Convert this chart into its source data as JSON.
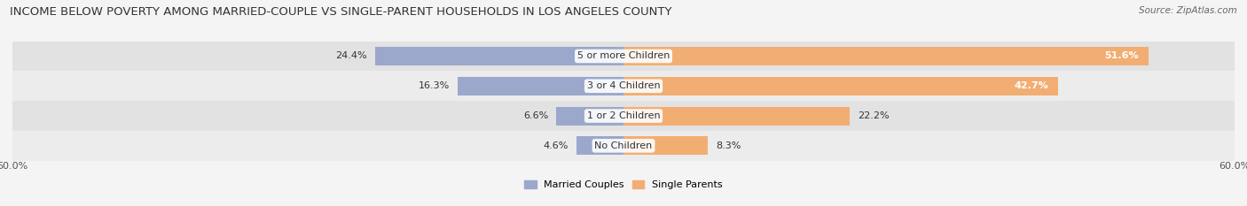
{
  "title": "INCOME BELOW POVERTY AMONG MARRIED-COUPLE VS SINGLE-PARENT HOUSEHOLDS IN LOS ANGELES COUNTY",
  "source": "Source: ZipAtlas.com",
  "categories": [
    "No Children",
    "1 or 2 Children",
    "3 or 4 Children",
    "5 or more Children"
  ],
  "married_values": [
    4.6,
    6.6,
    16.3,
    24.4
  ],
  "single_values": [
    8.3,
    22.2,
    42.7,
    51.6
  ],
  "max_value": 60.0,
  "married_color": "#9ba8cc",
  "single_color": "#f2ae72",
  "row_bg_color_odd": "#ececec",
  "row_bg_color_even": "#e2e2e2",
  "fig_bg_color": "#f4f4f4",
  "married_label": "Married Couples",
  "single_label": "Single Parents",
  "axis_label": "60.0%",
  "title_fontsize": 9.5,
  "source_fontsize": 7.5,
  "label_fontsize": 8,
  "cat_fontsize": 8,
  "bar_height": 0.62,
  "figsize": [
    14.06,
    2.33
  ],
  "dpi": 100
}
